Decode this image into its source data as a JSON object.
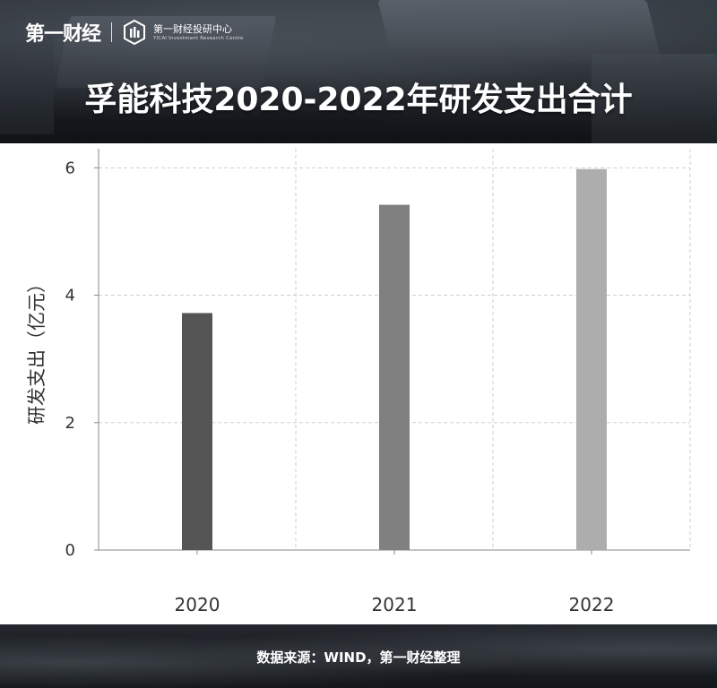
{
  "header": {
    "logo_text": "第一财经",
    "logo_sub_cn": "第一财经投研中心",
    "logo_sub_en": "YICAI Investment Research Centre",
    "title": "孚能科技2020-2022年研发支出合计"
  },
  "footer": {
    "source": "数据来源：WIND，第一财经整理"
  },
  "chart_data": {
    "type": "bar",
    "title": "孚能科技2020-2022年研发支出合计",
    "categories": [
      "2020",
      "2021",
      "2022"
    ],
    "values": [
      3.72,
      5.42,
      5.98
    ],
    "ylabel": "研发支出（亿元）",
    "xlabel": "",
    "ylim": [
      0,
      6.3
    ],
    "yticks": [
      "0",
      "2",
      "4",
      "6"
    ],
    "grid": true,
    "colors": [
      "#555555",
      "#808080",
      "#adadad"
    ]
  }
}
